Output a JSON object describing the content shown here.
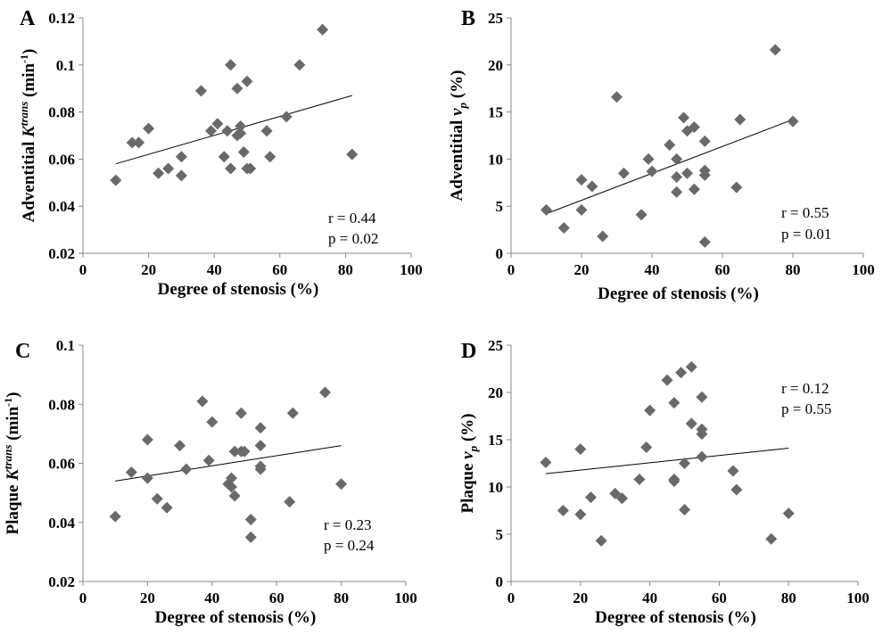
{
  "chart_data": [
    {
      "panel": "A",
      "type": "scatter",
      "ylabel": {
        "pre": "Adventitial ",
        "sym": "K",
        "sup": "trans",
        "post": " (min",
        "unit_sup": "-1",
        "end": ")"
      },
      "xlabel": "Degree of stenosis (%)",
      "xlim": [
        0,
        100
      ],
      "xticks": [
        0,
        20,
        40,
        60,
        80,
        100
      ],
      "ylim": [
        0.02,
        0.12
      ],
      "yticks": [
        0.02,
        0.04,
        0.06,
        0.08,
        0.1,
        0.12
      ],
      "ytick_labels": [
        "0.02",
        "0.04",
        "0.06",
        "0.08",
        "0.1",
        "0.12"
      ],
      "annotations": [
        "r = 0.44",
        "p = 0.02"
      ],
      "trendline": {
        "x": [
          10,
          82
        ],
        "y": [
          0.058,
          0.087
        ]
      },
      "x": [
        10,
        15,
        17,
        20,
        23,
        26,
        30,
        30,
        36,
        39,
        41,
        43,
        44,
        45,
        45,
        47,
        47,
        48,
        48,
        49,
        50,
        50,
        51,
        56,
        57,
        62,
        66,
        73,
        82
      ],
      "y": [
        0.051,
        0.067,
        0.067,
        0.073,
        0.054,
        0.056,
        0.061,
        0.053,
        0.089,
        0.072,
        0.075,
        0.061,
        0.072,
        0.1,
        0.056,
        0.07,
        0.09,
        0.074,
        0.071,
        0.063,
        0.093,
        0.056,
        0.056,
        0.072,
        0.061,
        0.078,
        0.1,
        0.115,
        0.062
      ]
    },
    {
      "panel": "B",
      "type": "scatter",
      "ylabel": {
        "pre": "Adventitial ",
        "sym": "v",
        "sub": "p",
        "post": " (%)"
      },
      "xlabel": "Degree of stenosis (%)",
      "xlim": [
        0,
        100
      ],
      "xticks": [
        0,
        20,
        40,
        60,
        80,
        100
      ],
      "ylim": [
        0,
        25
      ],
      "yticks": [
        0,
        5,
        10,
        15,
        20,
        25
      ],
      "ytick_labels": [
        "0",
        "5",
        "10",
        "15",
        "20",
        "25"
      ],
      "annotations": [
        "r = 0.55",
        "p = 0.01"
      ],
      "trendline": {
        "x": [
          10,
          80
        ],
        "y": [
          4.2,
          14.2
        ]
      },
      "x": [
        10,
        15,
        20,
        20,
        23,
        26,
        30,
        32,
        37,
        39,
        40,
        45,
        47,
        47,
        47,
        49,
        50,
        50,
        52,
        52,
        55,
        55,
        55,
        55,
        64,
        65,
        75,
        80
      ],
      "y": [
        4.6,
        2.7,
        7.8,
        4.6,
        7.1,
        1.8,
        16.6,
        8.5,
        4.1,
        10.0,
        8.7,
        11.5,
        10.0,
        8.1,
        6.5,
        14.4,
        8.5,
        13.0,
        13.4,
        6.8,
        11.9,
        8.8,
        8.3,
        1.2,
        7.0,
        14.2,
        21.6,
        14.0
      ]
    },
    {
      "panel": "C",
      "type": "scatter",
      "ylabel": {
        "pre": "Plaque ",
        "sym": "K",
        "sup": "trans",
        "post": " (min",
        "unit_sup": "-1",
        "end": ")"
      },
      "xlabel": "Degree of stenosis (%)",
      "xlim": [
        0,
        100
      ],
      "xticks": [
        0,
        20,
        40,
        60,
        80,
        100
      ],
      "ylim": [
        0.02,
        0.1
      ],
      "yticks": [
        0.02,
        0.04,
        0.06,
        0.08,
        0.1
      ],
      "ytick_labels": [
        "0.02",
        "0.04",
        "0.06",
        "0.08",
        "0.1"
      ],
      "annotations": [
        "r = 0.23",
        "p = 0.24"
      ],
      "trendline": {
        "x": [
          10,
          80
        ],
        "y": [
          0.054,
          0.066
        ]
      },
      "x": [
        10,
        15,
        20,
        20,
        23,
        26,
        30,
        32,
        37,
        39,
        40,
        45,
        46,
        46,
        47,
        47,
        49,
        49,
        50,
        52,
        52,
        55,
        55,
        55,
        55,
        64,
        65,
        75,
        80
      ],
      "y": [
        0.042,
        0.057,
        0.055,
        0.068,
        0.048,
        0.045,
        0.066,
        0.058,
        0.081,
        0.061,
        0.074,
        0.053,
        0.055,
        0.052,
        0.064,
        0.049,
        0.064,
        0.077,
        0.064,
        0.041,
        0.035,
        0.072,
        0.066,
        0.059,
        0.058,
        0.047,
        0.077,
        0.084,
        0.053
      ]
    },
    {
      "panel": "D",
      "type": "scatter",
      "ylabel": {
        "pre": "Plaque ",
        "sym": "v",
        "sub": "p",
        "post": " (%)"
      },
      "xlabel": "Degree of stenosis (%)",
      "xlim": [
        0,
        100
      ],
      "xticks": [
        0,
        20,
        40,
        60,
        80,
        100
      ],
      "ylim": [
        0,
        25
      ],
      "yticks": [
        0,
        5,
        10,
        15,
        20,
        25
      ],
      "ytick_labels": [
        "0",
        "5",
        "10",
        "15",
        "20",
        "25"
      ],
      "annotations": [
        "r = 0.12",
        "p = 0.55"
      ],
      "trendline": {
        "x": [
          10,
          80
        ],
        "y": [
          11.4,
          14.1
        ]
      },
      "x": [
        10,
        15,
        20,
        20,
        23,
        26,
        30,
        32,
        37,
        39,
        40,
        45,
        47,
        47,
        47,
        49,
        50,
        50,
        52,
        52,
        55,
        55,
        55,
        55,
        64,
        65,
        75,
        80
      ],
      "y": [
        12.6,
        7.5,
        14.0,
        7.1,
        8.9,
        4.3,
        9.3,
        8.8,
        10.8,
        14.2,
        18.1,
        21.3,
        18.9,
        10.6,
        10.8,
        22.1,
        12.5,
        7.6,
        22.7,
        16.7,
        19.5,
        16.1,
        15.6,
        13.2,
        11.7,
        9.7,
        4.5,
        7.2
      ]
    }
  ]
}
